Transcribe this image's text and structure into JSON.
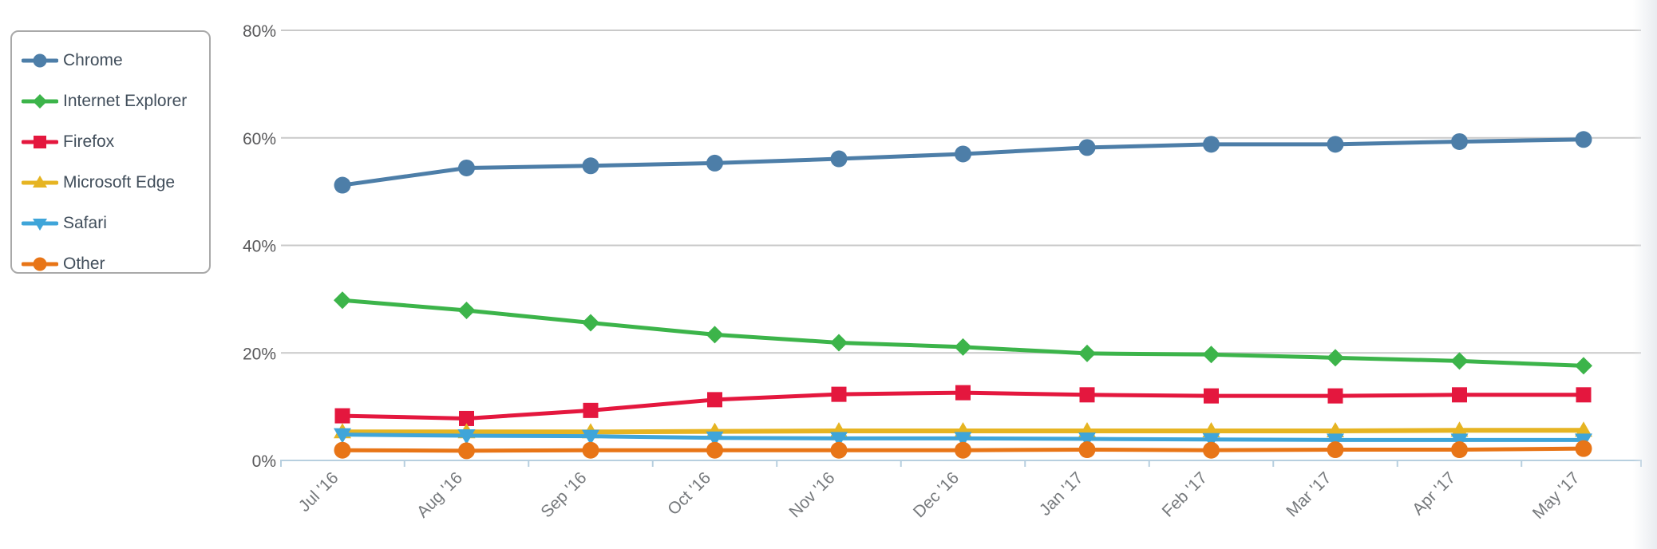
{
  "chart_data": {
    "type": "line",
    "title": "",
    "xlabel": "",
    "ylabel": "",
    "categories": [
      "Jul '16",
      "Aug '16",
      "Sep '16",
      "Oct '16",
      "Nov '16",
      "Dec '16",
      "Jan '17",
      "Feb '17",
      "Mar '17",
      "Apr '17",
      "May '17"
    ],
    "series": [
      {
        "name": "Chrome",
        "color": "#4d7ea8",
        "marker": "circle",
        "values": [
          51.2,
          54.4,
          54.8,
          55.3,
          56.1,
          57.0,
          58.2,
          58.8,
          58.8,
          59.3,
          59.7
        ]
      },
      {
        "name": "Internet Explorer",
        "color": "#3cb44a",
        "marker": "diamond",
        "values": [
          29.8,
          27.9,
          25.6,
          23.4,
          21.9,
          21.1,
          19.9,
          19.7,
          19.1,
          18.5,
          17.6
        ]
      },
      {
        "name": "Firefox",
        "color": "#e4173e",
        "marker": "square",
        "values": [
          8.3,
          7.8,
          9.3,
          11.3,
          12.3,
          12.6,
          12.2,
          12.0,
          12.0,
          12.2,
          12.2
        ]
      },
      {
        "name": "Microsoft Edge",
        "color": "#e6b422",
        "marker": "triangle-up",
        "values": [
          5.3,
          5.3,
          5.3,
          5.4,
          5.5,
          5.5,
          5.5,
          5.5,
          5.5,
          5.6,
          5.6
        ]
      },
      {
        "name": "Safari",
        "color": "#3fa5d9",
        "marker": "triangle-down",
        "values": [
          4.8,
          4.6,
          4.5,
          4.2,
          4.1,
          4.1,
          4.0,
          3.9,
          3.8,
          3.8,
          3.8
        ]
      },
      {
        "name": "Other",
        "color": "#e87517",
        "marker": "circle",
        "values": [
          1.9,
          1.8,
          1.9,
          1.9,
          1.9,
          1.9,
          2.0,
          1.9,
          2.0,
          2.0,
          2.2
        ]
      }
    ],
    "y_ticks": [
      {
        "label": "80%",
        "value": 80
      },
      {
        "label": "60%",
        "value": 60
      },
      {
        "label": "40%",
        "value": 40
      },
      {
        "label": "20%",
        "value": 20
      },
      {
        "label": "0%",
        "value": 0
      }
    ],
    "ylim": [
      0,
      80
    ],
    "grid": true,
    "legend_position": "top-left"
  },
  "colors": {
    "gridline": "#c9c9c9",
    "axis_line": "#b7cfdf",
    "y_tick_text": "#58585a",
    "x_tick_text": "#76797c",
    "legend_text": "#414e5b",
    "legend_border": "#a9a9a9",
    "background": "#ffffff"
  }
}
